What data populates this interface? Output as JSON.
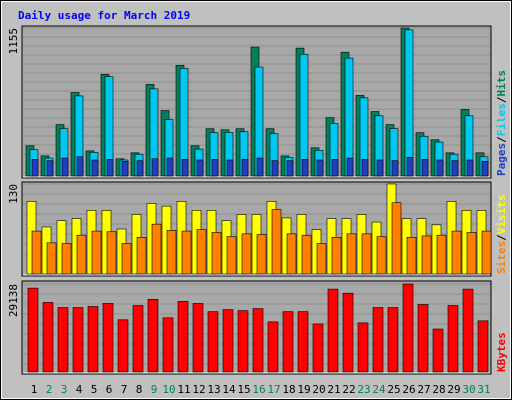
{
  "chart_data": {
    "type": "bar",
    "title": "Daily usage for March 2019",
    "separator": "/",
    "categories": [
      "1",
      "2",
      "3",
      "4",
      "5",
      "6",
      "7",
      "8",
      "9",
      "10",
      "11",
      "12",
      "13",
      "14",
      "15",
      "16",
      "17",
      "18",
      "19",
      "20",
      "21",
      "22",
      "23",
      "24",
      "25",
      "26",
      "27",
      "28",
      "29",
      "30",
      "31"
    ],
    "category_colors": [
      "#000000",
      "#00805c",
      "#00805c",
      "#000000",
      "#000000",
      "#000000",
      "#000000",
      "#000000",
      "#00805c",
      "#00805c",
      "#000000",
      "#000000",
      "#000000",
      "#000000",
      "#000000",
      "#00805c",
      "#00805c",
      "#000000",
      "#000000",
      "#000000",
      "#000000",
      "#000000",
      "#00805c",
      "#00805c",
      "#000000",
      "#000000",
      "#000000",
      "#000000",
      "#000000",
      "#00805c",
      "#00805c"
    ],
    "panels": [
      {
        "ylim": [
          0,
          1155
        ],
        "yticks": [
          1155
        ],
        "series": [
          {
            "name": "Hits",
            "color": "#00805c",
            "values": [
              236,
              157,
              401,
              652,
              196,
              794,
              134,
              181,
              715,
              511,
              864,
              236,
              369,
              361,
              369,
              1006,
              369,
              157,
              998,
              220,
              456,
              966,
              629,
              503,
              401,
              1155,
              338,
              283,
              181,
              519,
              181
            ]
          },
          {
            "name": "Files",
            "color": "#00c8f0",
            "values": [
              205,
              140,
              370,
              625,
              185,
              775,
              125,
              170,
              680,
              440,
              840,
              210,
              340,
              340,
              345,
              850,
              330,
              145,
              950,
              200,
              410,
              920,
              610,
              470,
              370,
              1140,
              310,
              265,
              170,
              470,
              150
            ]
          },
          {
            "name": "Pages",
            "color": "#2040c0",
            "values": [
              130,
              120,
              140,
              150,
              125,
              130,
              115,
              120,
              135,
              140,
              130,
              125,
              130,
              125,
              130,
              140,
              120,
              120,
              130,
              125,
              130,
              140,
              130,
              125,
              120,
              145,
              130,
              125,
              120,
              125,
              115
            ]
          }
        ]
      },
      {
        "ylim": [
          0,
          130
        ],
        "yticks": [
          130
        ],
        "series": [
          {
            "name": "Visits",
            "color": "#ffff00",
            "values": [
              105,
              68,
              77,
              80,
              92,
              92,
              65,
              86,
              102,
              98,
              105,
              92,
              92,
              77,
              86,
              86,
              105,
              81,
              86,
              64,
              80,
              80,
              86,
              75,
              130,
              80,
              80,
              71,
              105,
              92,
              92
            ]
          },
          {
            "name": "Sites",
            "color": "#ff8000",
            "values": [
              62,
              45,
              44,
              56,
              62,
              61,
              44,
              53,
              72,
              63,
              62,
              64,
              60,
              54,
              58,
              57,
              93,
              58,
              56,
              44,
              53,
              58,
              58,
              54,
              103,
              53,
              55,
              56,
              62,
              60,
              62
            ]
          }
        ]
      },
      {
        "ylim": [
          0,
          29138
        ],
        "yticks": [
          29138
        ],
        "series": [
          {
            "name": "KBytes",
            "color": "#ff0000",
            "values": [
              27782,
              23039,
              21345,
              21345,
              21684,
              22700,
              17279,
              22023,
              24056,
              17957,
              23378,
              22700,
              19990,
              20667,
              20329,
              21006,
              16602,
              19990,
              19990,
              15924,
              27443,
              26088,
              16263,
              21345,
              21345,
              29138,
              22361,
              14231,
              22023,
              27443,
              16941
            ]
          }
        ]
      }
    ]
  }
}
